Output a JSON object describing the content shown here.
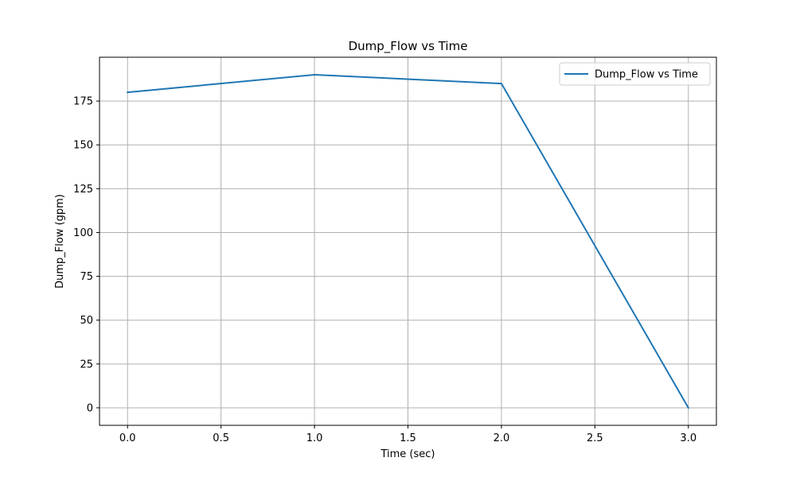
{
  "chart_data": {
    "type": "line",
    "title": "Dump_Flow vs Time",
    "xlabel": "Time (sec)",
    "ylabel": "Dump_Flow (gpm)",
    "xlim": [
      -0.15,
      3.15
    ],
    "ylim": [
      -10,
      200
    ],
    "xticks": [
      0.0,
      0.5,
      1.0,
      1.5,
      2.0,
      2.5,
      3.0
    ],
    "xtick_labels": [
      "0.0",
      "0.5",
      "1.0",
      "1.5",
      "2.0",
      "2.5",
      "3.0"
    ],
    "yticks": [
      0,
      25,
      50,
      75,
      100,
      125,
      150,
      175
    ],
    "ytick_labels": [
      "0",
      "25",
      "50",
      "75",
      "100",
      "125",
      "150",
      "175"
    ],
    "grid": true,
    "legend_position": "top-right",
    "series": [
      {
        "name": "Dump_Flow vs Time",
        "color": "#1f77b4",
        "x": [
          0,
          1,
          2,
          3
        ],
        "y": [
          180,
          190,
          185,
          0
        ]
      }
    ]
  }
}
